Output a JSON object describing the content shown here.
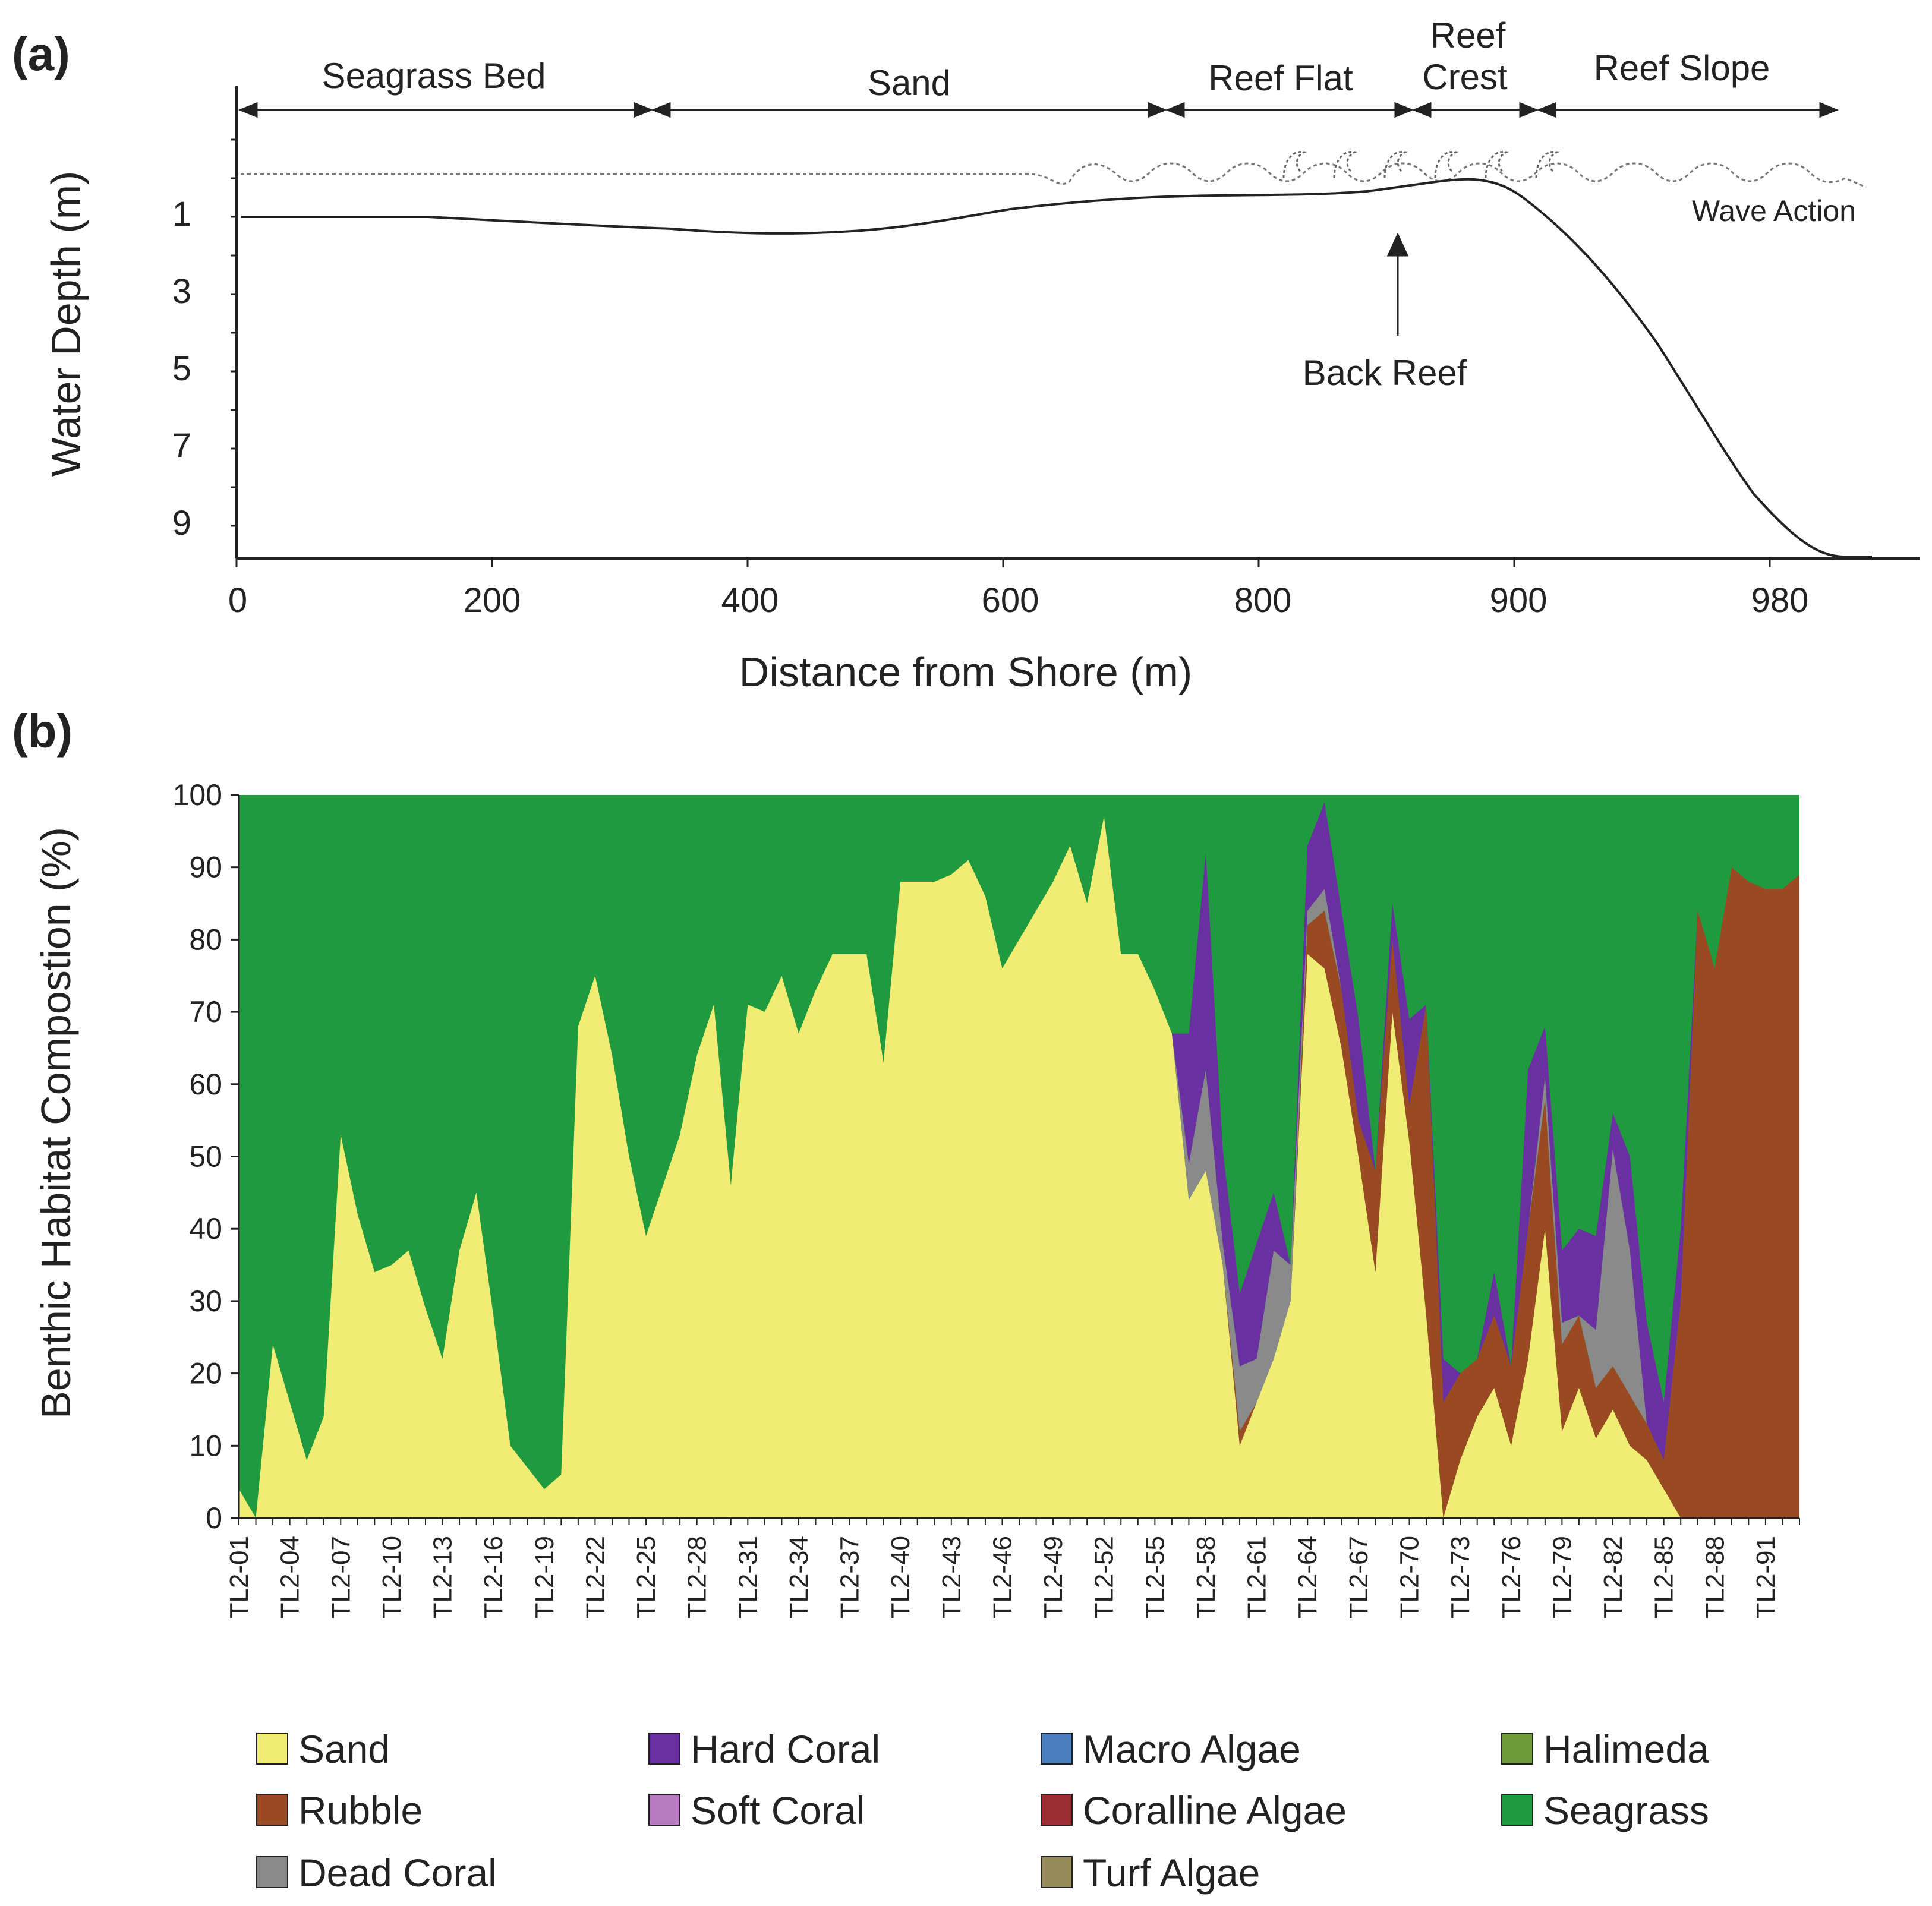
{
  "panel_a": {
    "label": "(a)",
    "ylabel": "Water Depth (m)",
    "xlabel": "Distance from Shore (m)",
    "y_ticks": [
      "1",
      "3",
      "5",
      "7",
      "9"
    ],
    "x_ticks": [
      "0",
      "200",
      "400",
      "600",
      "800",
      "900",
      "980"
    ],
    "zones": [
      "Seagrass Bed",
      "Sand",
      "Reef Flat",
      "Reef",
      "Crest",
      "Reef Slope"
    ],
    "wave_label": "Wave Action",
    "back_reef_label": "Back Reef"
  },
  "panel_b": {
    "label": "(b)",
    "ylabel": "Benthic Habitat Compostion (%)",
    "y_ticks": [
      "0",
      "10",
      "20",
      "30",
      "40",
      "50",
      "60",
      "70",
      "80",
      "90",
      "100"
    ]
  },
  "legend": [
    {
      "label": "Sand",
      "color": "#f0ec74"
    },
    {
      "label": "Hard Coral",
      "color": "#6a2fa0"
    },
    {
      "label": "Macro Algae",
      "color": "#4a7fc0"
    },
    {
      "label": "Halimeda",
      "color": "#6f9a3a"
    },
    {
      "label": "Rubble",
      "color": "#9a4a22"
    },
    {
      "label": "Soft Coral",
      "color": "#b87ac0"
    },
    {
      "label": "Coralline Algae",
      "color": "#9c2e34"
    },
    {
      "label": "Seagrass",
      "color": "#1f9a3e"
    },
    {
      "label": "Dead Coral",
      "color": "#8a8a8a"
    },
    {
      "label": "Turf Algae",
      "color": "#958a5a"
    }
  ],
  "chart_data": [
    {
      "type": "line",
      "title": "(a)",
      "xlabel": "Distance from Shore (m)",
      "ylabel": "Water Depth (m)",
      "x_tick_labels": [
        "0",
        "200",
        "400",
        "600",
        "800",
        "900",
        "980"
      ],
      "ylim": [
        0,
        10
      ],
      "y_ticks": [
        1,
        3,
        5,
        7,
        9
      ],
      "zones": [
        {
          "name": "Seagrass Bed",
          "from": "0",
          "to": "~320"
        },
        {
          "name": "Sand",
          "from": "~330",
          "to": "~720"
        },
        {
          "name": "Reef Flat",
          "from": "~730",
          "to": "~880"
        },
        {
          "name": "Reef Crest",
          "from": "~880",
          "to": "~910"
        },
        {
          "name": "Reef Slope",
          "from": "~920",
          "to": "~980"
        }
      ],
      "series": [
        {
          "name": "Bottom profile",
          "depth_m": [
            1.1,
            1.1,
            1.2,
            1.3,
            1.5,
            1.4,
            1.0,
            0.6,
            0.5,
            0.1,
            2.0,
            6.0,
            9.5,
            9.9
          ]
        },
        {
          "name": "Water surface / Wave Action",
          "depth_m": [
            -0.1,
            -0.1,
            -0.1
          ]
        }
      ],
      "annotations": [
        "Back Reef",
        "Wave Action"
      ]
    },
    {
      "type": "area",
      "stacked": true,
      "title": "(b)",
      "ylabel": "Benthic Habitat Compostion (%)",
      "ylim": [
        0,
        100
      ],
      "categories": [
        "TL2-01",
        "TL2-02",
        "TL2-03",
        "TL2-04",
        "TL2-05",
        "TL2-06",
        "TL2-07",
        "TL2-08",
        "TL2-09",
        "TL2-10",
        "TL2-11",
        "TL2-12",
        "TL2-13",
        "TL2-14",
        "TL2-15",
        "TL2-16",
        "TL2-17",
        "TL2-18",
        "TL2-19",
        "TL2-20",
        "TL2-21",
        "TL2-22",
        "TL2-23",
        "TL2-24",
        "TL2-25",
        "TL2-26",
        "TL2-27",
        "TL2-28",
        "TL2-29",
        "TL2-30",
        "TL2-31",
        "TL2-32",
        "TL2-33",
        "TL2-34",
        "TL2-35",
        "TL2-36",
        "TL2-37",
        "TL2-38",
        "TL2-39",
        "TL2-40",
        "TL2-41",
        "TL2-42",
        "TL2-43",
        "TL2-44",
        "TL2-45",
        "TL2-46",
        "TL2-47",
        "TL2-48",
        "TL2-49",
        "TL2-50",
        "TL2-51",
        "TL2-52",
        "TL2-53",
        "TL2-54",
        "TL2-55",
        "TL2-56",
        "TL2-57",
        "TL2-58",
        "TL2-59",
        "TL2-60",
        "TL2-61",
        "TL2-62",
        "TL2-63",
        "TL2-64",
        "TL2-65",
        "TL2-66",
        "TL2-67",
        "TL2-68",
        "TL2-69",
        "TL2-70",
        "TL2-71",
        "TL2-72",
        "TL2-73",
        "TL2-74",
        "TL2-75",
        "TL2-76",
        "TL2-77",
        "TL2-78",
        "TL2-79",
        "TL2-80",
        "TL2-81",
        "TL2-82",
        "TL2-83",
        "TL2-84",
        "TL2-85",
        "TL2-86",
        "TL2-87",
        "TL2-88",
        "TL2-89",
        "TL2-90",
        "TL2-91",
        "TL2-92",
        "TL2-93"
      ],
      "shown_tick_labels": [
        "TL2-01",
        "TL2-04",
        "TL2-07",
        "TL2-10",
        "TL2-13",
        "TL2-16",
        "TL2-19",
        "TL2-22",
        "TL2-25",
        "TL2-28",
        "TL2-31",
        "TL2-34",
        "TL2-37",
        "TL2-40",
        "TL2-43",
        "TL2-46",
        "TL2-49",
        "TL2-52",
        "TL2-55",
        "TL2-58",
        "TL2-61",
        "TL2-64",
        "TL2-67",
        "TL2-70",
        "TL2-73",
        "TL2-76",
        "TL2-79",
        "TL2-82",
        "TL2-85",
        "TL2-88",
        "TL2-91"
      ],
      "series": [
        {
          "name": "Sand",
          "values": [
            4,
            0,
            24,
            16,
            8,
            14,
            53,
            42,
            34,
            35,
            37,
            29,
            22,
            37,
            45,
            28,
            10,
            7,
            4,
            6,
            68,
            75,
            64,
            50,
            39,
            46,
            53,
            64,
            71,
            46,
            71,
            70,
            75,
            67,
            73,
            78,
            78,
            78,
            63,
            88,
            88,
            88,
            89,
            91,
            86,
            76,
            80,
            84,
            88,
            93,
            85,
            97,
            78,
            78,
            73,
            67,
            44,
            48,
            35,
            10,
            16,
            22,
            30,
            78,
            76,
            65,
            50,
            34,
            70,
            52,
            28,
            0,
            8,
            14,
            18,
            10,
            22,
            40,
            12,
            18,
            11,
            15,
            10,
            8,
            4,
            0,
            0,
            0,
            0,
            0,
            0,
            0,
            0
          ]
        },
        {
          "name": "Rubble",
          "values": [
            0,
            0,
            0,
            0,
            0,
            0,
            0,
            0,
            0,
            0,
            0,
            0,
            0,
            0,
            0,
            0,
            0,
            0,
            0,
            0,
            0,
            0,
            0,
            0,
            0,
            0,
            0,
            0,
            0,
            0,
            0,
            0,
            0,
            0,
            0,
            0,
            0,
            0,
            0,
            0,
            0,
            0,
            0,
            0,
            0,
            0,
            0,
            0,
            0,
            0,
            0,
            0,
            0,
            0,
            0,
            0,
            0,
            0,
            0,
            2,
            0,
            0,
            0,
            4,
            8,
            8,
            5,
            14,
            10,
            5,
            43,
            16,
            12,
            8,
            10,
            11,
            18,
            18,
            12,
            10,
            7,
            6,
            7,
            5,
            4,
            30,
            84,
            76,
            90,
            88,
            87,
            87,
            89
          ]
        },
        {
          "name": "Dead Coral",
          "values": [
            0,
            0,
            0,
            0,
            0,
            0,
            0,
            0,
            0,
            0,
            0,
            0,
            0,
            0,
            0,
            0,
            0,
            0,
            0,
            0,
            0,
            0,
            0,
            0,
            0,
            0,
            0,
            0,
            0,
            0,
            0,
            0,
            0,
            0,
            0,
            0,
            0,
            0,
            0,
            0,
            0,
            0,
            0,
            0,
            0,
            0,
            0,
            0,
            0,
            0,
            0,
            0,
            0,
            0,
            0,
            0,
            5,
            14,
            3,
            9,
            6,
            15,
            5,
            2,
            3,
            0,
            0,
            0,
            0,
            0,
            0,
            0,
            0,
            0,
            0,
            0,
            0,
            3,
            3,
            0,
            8,
            30,
            20,
            0,
            0,
            0,
            0,
            0,
            0,
            0,
            0,
            0,
            0
          ]
        },
        {
          "name": "Hard Coral",
          "values": [
            0,
            0,
            0,
            0,
            0,
            0,
            0,
            0,
            0,
            0,
            0,
            0,
            0,
            0,
            0,
            0,
            0,
            0,
            0,
            0,
            0,
            0,
            0,
            0,
            0,
            0,
            0,
            0,
            0,
            0,
            0,
            0,
            0,
            0,
            0,
            0,
            0,
            0,
            0,
            0,
            0,
            0,
            0,
            0,
            0,
            0,
            0,
            0,
            0,
            0,
            0,
            0,
            0,
            0,
            0,
            0,
            18,
            30,
            13,
            10,
            16,
            8,
            0,
            9,
            12,
            11,
            14,
            0,
            5,
            12,
            0,
            6,
            0,
            0,
            6,
            0,
            22,
            7,
            10,
            12,
            13,
            5,
            13,
            14,
            8,
            10,
            0,
            0,
            0,
            0,
            0,
            0,
            0
          ]
        }
      ]
    }
  ]
}
